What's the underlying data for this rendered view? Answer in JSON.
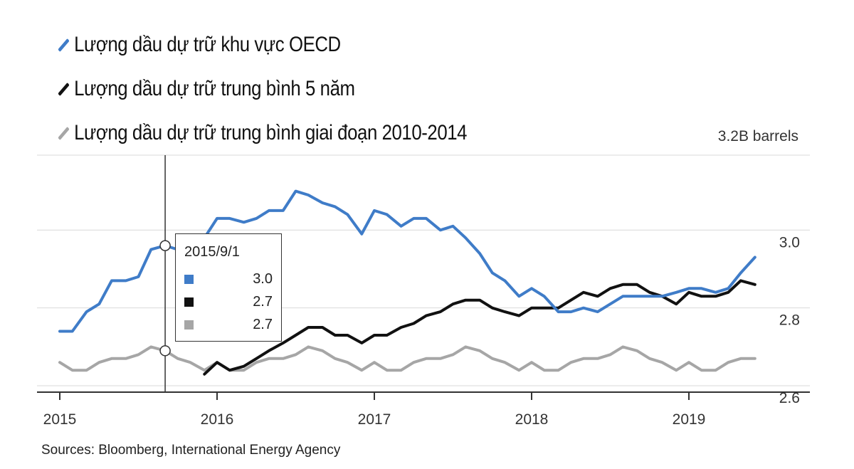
{
  "legend": [
    {
      "label": "Lượng dầu dự trữ khu vực OECD",
      "color": "#3f7cc8"
    },
    {
      "label": "Lượng dầu dự trữ trung bình 5 năm",
      "color": "#111111"
    },
    {
      "label": "Lượng dầu dự trữ trung bình giai đoạn 2010-2014",
      "color": "#a6a6a6"
    }
  ],
  "unit_label": "3.2B barrels",
  "sources": "Sources: Bloomberg, International Energy Agency",
  "tooltip": {
    "date": "2015/9/1",
    "rows": [
      {
        "value": "3.0",
        "color": "#3f7cc8"
      },
      {
        "value": "2.7",
        "color": "#111111"
      },
      {
        "value": "2.7",
        "color": "#a6a6a6"
      }
    ]
  },
  "chart_data": {
    "type": "line",
    "x_ticks": [
      "2015",
      "2016",
      "2017",
      "2018",
      "2019"
    ],
    "y_ticks": [
      "2.6",
      "2.8",
      "3.0"
    ],
    "ylim": [
      2.58,
      3.2
    ],
    "xlim": [
      2015.0,
      2019.7
    ],
    "grid": true,
    "crosshair_x": 2015.67,
    "series": [
      {
        "name": "Lượng dầu dự trữ khu vực OECD",
        "color": "#3f7cc8",
        "width": 4,
        "x": [
          2015.0,
          2015.08,
          2015.17,
          2015.25,
          2015.33,
          2015.42,
          2015.5,
          2015.58,
          2015.67,
          2015.75,
          2015.83,
          2015.92,
          2016.0,
          2016.08,
          2016.17,
          2016.25,
          2016.33,
          2016.42,
          2016.5,
          2016.58,
          2016.67,
          2016.75,
          2016.83,
          2016.92,
          2017.0,
          2017.08,
          2017.17,
          2017.25,
          2017.33,
          2017.42,
          2017.5,
          2017.58,
          2017.67,
          2017.75,
          2017.83,
          2017.92,
          2018.0,
          2018.08,
          2018.17,
          2018.25,
          2018.33,
          2018.42,
          2018.5,
          2018.58,
          2018.67,
          2018.75,
          2018.83,
          2018.92,
          2019.0,
          2019.08,
          2019.17,
          2019.25,
          2019.33,
          2019.42
        ],
        "y": [
          2.74,
          2.74,
          2.79,
          2.81,
          2.87,
          2.87,
          2.88,
          2.95,
          2.96,
          2.95,
          2.96,
          2.98,
          3.03,
          3.03,
          3.02,
          3.03,
          3.05,
          3.05,
          3.1,
          3.09,
          3.07,
          3.06,
          3.04,
          2.99,
          3.05,
          3.04,
          3.01,
          3.03,
          3.03,
          3.0,
          3.01,
          2.98,
          2.94,
          2.89,
          2.87,
          2.83,
          2.85,
          2.83,
          2.79,
          2.79,
          2.8,
          2.79,
          2.81,
          2.83,
          2.83,
          2.83,
          2.83,
          2.84,
          2.85,
          2.85,
          2.84,
          2.85,
          2.89,
          2.93
        ]
      },
      {
        "name": "Lượng dầu dự trữ trung bình 5 năm",
        "color": "#111111",
        "width": 4,
        "x": [
          2015.92,
          2016.0,
          2016.08,
          2016.17,
          2016.25,
          2016.33,
          2016.42,
          2016.5,
          2016.58,
          2016.67,
          2016.75,
          2016.83,
          2016.92,
          2017.0,
          2017.08,
          2017.17,
          2017.25,
          2017.33,
          2017.42,
          2017.5,
          2017.58,
          2017.67,
          2017.75,
          2017.83,
          2017.92,
          2018.0,
          2018.08,
          2018.17,
          2018.25,
          2018.33,
          2018.42,
          2018.5,
          2018.58,
          2018.67,
          2018.75,
          2018.83,
          2018.92,
          2019.0,
          2019.08,
          2019.17,
          2019.25,
          2019.33,
          2019.42
        ],
        "y": [
          2.63,
          2.66,
          2.64,
          2.65,
          2.67,
          2.69,
          2.71,
          2.73,
          2.75,
          2.75,
          2.73,
          2.73,
          2.71,
          2.73,
          2.73,
          2.75,
          2.76,
          2.78,
          2.79,
          2.81,
          2.82,
          2.82,
          2.8,
          2.79,
          2.78,
          2.8,
          2.8,
          2.8,
          2.82,
          2.84,
          2.83,
          2.85,
          2.86,
          2.86,
          2.84,
          2.83,
          2.81,
          2.84,
          2.83,
          2.83,
          2.84,
          2.87,
          2.86
        ]
      },
      {
        "name": "Lượng dầu dự trữ trung bình giai đoạn 2010-2014",
        "color": "#a6a6a6",
        "width": 4,
        "x": [
          2015.0,
          2015.08,
          2015.17,
          2015.25,
          2015.33,
          2015.42,
          2015.5,
          2015.58,
          2015.67,
          2015.75,
          2015.83,
          2015.92,
          2016.0,
          2016.08,
          2016.17,
          2016.25,
          2016.33,
          2016.42,
          2016.5,
          2016.58,
          2016.67,
          2016.75,
          2016.83,
          2016.92,
          2017.0,
          2017.08,
          2017.17,
          2017.25,
          2017.33,
          2017.42,
          2017.5,
          2017.58,
          2017.67,
          2017.75,
          2017.83,
          2017.92,
          2018.0,
          2018.08,
          2018.17,
          2018.25,
          2018.33,
          2018.42,
          2018.5,
          2018.58,
          2018.67,
          2018.75,
          2018.83,
          2018.92,
          2019.0,
          2019.08,
          2019.17,
          2019.25,
          2019.33,
          2019.42
        ],
        "y": [
          2.66,
          2.64,
          2.64,
          2.66,
          2.67,
          2.67,
          2.68,
          2.7,
          2.69,
          2.67,
          2.66,
          2.64,
          2.66,
          2.64,
          2.64,
          2.66,
          2.67,
          2.67,
          2.68,
          2.7,
          2.69,
          2.67,
          2.66,
          2.64,
          2.66,
          2.64,
          2.64,
          2.66,
          2.67,
          2.67,
          2.68,
          2.7,
          2.69,
          2.67,
          2.66,
          2.64,
          2.66,
          2.64,
          2.64,
          2.66,
          2.67,
          2.67,
          2.68,
          2.7,
          2.69,
          2.67,
          2.66,
          2.64,
          2.66,
          2.64,
          2.64,
          2.66,
          2.67,
          2.67
        ]
      }
    ]
  }
}
